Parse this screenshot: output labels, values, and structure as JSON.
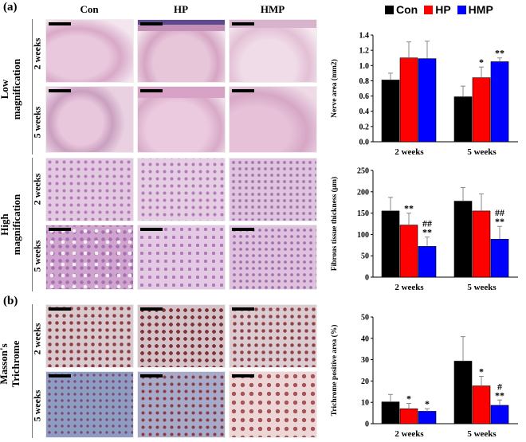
{
  "figure": {
    "panel_a": "(a)",
    "panel_b": "(b)",
    "columns": [
      "Con",
      "HP",
      "HMP"
    ],
    "groups": {
      "low": "Low\nmagnification",
      "high": "High\nmagnification",
      "masson": "Masson's\nTrichrome"
    },
    "rows": [
      "2 weeks",
      "5 weeks"
    ],
    "legend": [
      {
        "name": "Con",
        "color": "#000000"
      },
      {
        "name": "HP",
        "color": "#ff0000"
      },
      {
        "name": "HMP",
        "color": "#0000ff"
      }
    ]
  },
  "chart_data": [
    {
      "type": "bar",
      "categories": [
        "2 weeks",
        "5 weeks"
      ],
      "ylabel": "Nerve area (mm2)",
      "ylim": [
        0,
        1.4
      ],
      "yticks": [
        "0.0",
        "0.2",
        "0.4",
        "0.6",
        "0.8",
        "1.0",
        "1.2",
        "1.4"
      ],
      "series": [
        {
          "name": "Con",
          "color": "#000000",
          "values": [
            0.81,
            0.59
          ],
          "errors": [
            0.09,
            0.14
          ],
          "marks": [
            "",
            ""
          ]
        },
        {
          "name": "HP",
          "color": "#ff0000",
          "values": [
            1.1,
            0.84
          ],
          "errors": [
            0.21,
            0.14
          ],
          "marks": [
            "",
            "*"
          ]
        },
        {
          "name": "HMP",
          "color": "#0000ff",
          "values": [
            1.09,
            1.05
          ],
          "errors": [
            0.23,
            0.05
          ],
          "marks": [
            "",
            "**"
          ]
        }
      ]
    },
    {
      "type": "bar",
      "categories": [
        "2 weeks",
        "5 weeks"
      ],
      "ylabel": "Fibrous tissue thickness (μm)",
      "ylim": [
        0,
        250
      ],
      "yticks": [
        "0",
        "50",
        "100",
        "150",
        "200",
        "250"
      ],
      "series": [
        {
          "name": "Con",
          "color": "#000000",
          "values": [
            155,
            178
          ],
          "errors": [
            32,
            32
          ],
          "marks": [
            "",
            ""
          ]
        },
        {
          "name": "HP",
          "color": "#ff0000",
          "values": [
            122,
            155
          ],
          "errors": [
            28,
            40
          ],
          "marks": [
            "**",
            ""
          ]
        },
        {
          "name": "HMP",
          "color": "#0000ff",
          "values": [
            72,
            89
          ],
          "errors": [
            22,
            30
          ],
          "marks": [
            "##\n**",
            "##\n**"
          ]
        }
      ]
    },
    {
      "type": "bar",
      "categories": [
        "2 weeks",
        "5 weeks"
      ],
      "ylabel": "Trichrome positive area (%)",
      "ylim": [
        0,
        50
      ],
      "yticks": [
        "0",
        "10",
        "20",
        "30",
        "40",
        "50"
      ],
      "series": [
        {
          "name": "Con",
          "color": "#000000",
          "values": [
            10.2,
            29.3
          ],
          "errors": [
            3.5,
            11.5
          ],
          "marks": [
            "",
            ""
          ]
        },
        {
          "name": "HP",
          "color": "#ff0000",
          "values": [
            7.0,
            17.7
          ],
          "errors": [
            2.5,
            4.5
          ],
          "marks": [
            "*",
            "*"
          ]
        },
        {
          "name": "HMP",
          "color": "#0000ff",
          "values": [
            5.8,
            8.6
          ],
          "errors": [
            1.2,
            2.5
          ],
          "marks": [
            "*",
            "#\n**"
          ]
        }
      ]
    }
  ]
}
